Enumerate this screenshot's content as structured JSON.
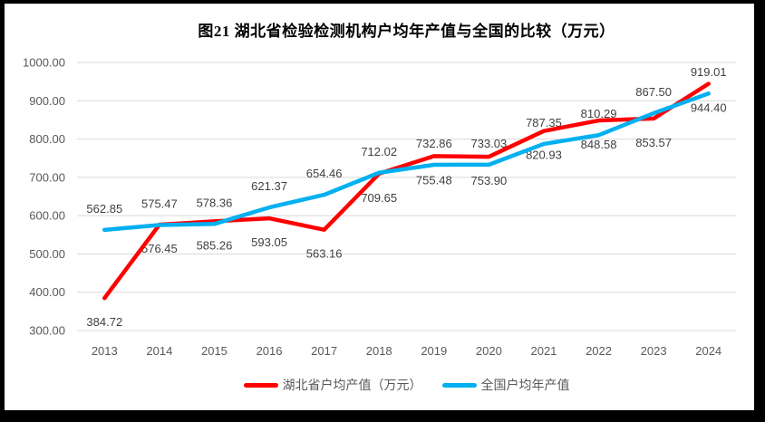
{
  "title": "图21 湖北省检验检测机构户均年产值与全国的比较（万元）",
  "chart_data": {
    "type": "line",
    "title": "图21 湖北省检验检测机构户均年产值与全国的比较（万元）",
    "x": [
      "2013",
      "2014",
      "2015",
      "2016",
      "2017",
      "2018",
      "2019",
      "2020",
      "2021",
      "2022",
      "2023",
      "2024"
    ],
    "series": [
      {
        "id": "hubei",
        "name": "湖北省户均产值（万元）",
        "color": "#FF0000",
        "label_position": "below",
        "values": [
          384.72,
          576.45,
          585.26,
          593.05,
          563.16,
          709.65,
          755.48,
          753.9,
          820.93,
          848.58,
          853.57,
          944.4
        ]
      },
      {
        "id": "national",
        "name": "全国户均年产值",
        "color": "#00B0F0",
        "label_position": "above",
        "values": [
          562.85,
          575.47,
          578.36,
          621.37,
          654.46,
          712.02,
          732.86,
          733.03,
          787.35,
          810.29,
          867.5,
          919.01
        ]
      }
    ],
    "ylim": [
      300,
      1000
    ],
    "ytick_step": 100,
    "ytick_labels": [
      "300.00",
      "400.00",
      "500.00",
      "600.00",
      "700.00",
      "800.00",
      "900.00",
      "1000.00"
    ],
    "grid": true,
    "gridline_color": "#D9D9D9",
    "axis_text_color": "#595959",
    "data_label_color": "#404040",
    "legend_position": "bottom"
  }
}
